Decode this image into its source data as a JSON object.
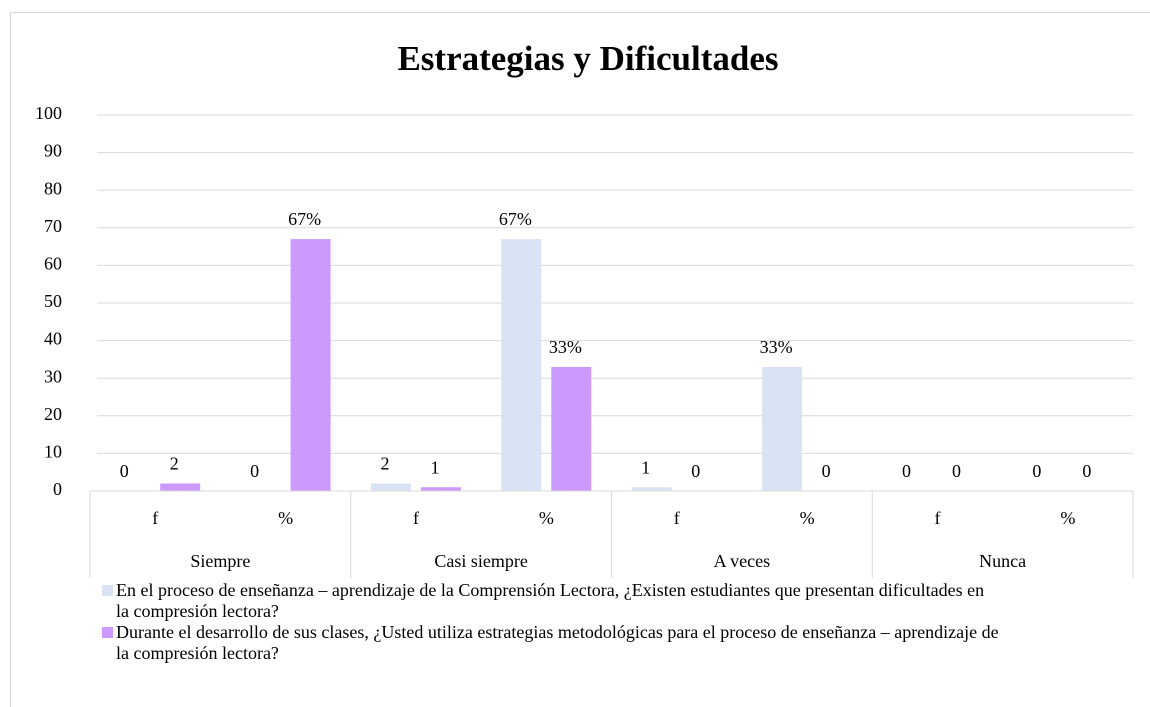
{
  "chart_data": {
    "type": "bar",
    "title": "Estrategias y Dificultades",
    "categories": [
      "f",
      "%",
      "f",
      "%",
      "f",
      "%",
      "f",
      "%"
    ],
    "groups": [
      "Siempre",
      "Casi siempre",
      "A veces",
      "Nunca"
    ],
    "series": [
      {
        "name": "En el proceso de enseñanza – aprendizaje de la Comprensión Lectora, ¿Existen estudiantes que presentan dificultades en la compresión lectora?",
        "color": "#dae3f3",
        "values": [
          0,
          0,
          2,
          67,
          1,
          33,
          0,
          0
        ],
        "value_labels": [
          "0",
          "0",
          "2",
          "67%",
          "1",
          "33%",
          "0",
          "0"
        ]
      },
      {
        "name": "Durante el desarrollo de sus clases, ¿Usted utiliza estrategias metodológicas para el proceso de enseñanza – aprendizaje de la compresión lectora?",
        "color": "#cc99ff",
        "values": [
          2,
          67,
          1,
          33,
          0,
          0,
          0,
          0
        ],
        "value_labels": [
          "2",
          "67%",
          "1",
          "33%",
          "0",
          "0",
          "0",
          "0"
        ]
      }
    ],
    "ylim": [
      0,
      100
    ],
    "yticks": [
      0,
      10,
      20,
      30,
      40,
      50,
      60,
      70,
      80,
      90,
      100
    ],
    "grid": true,
    "legend": "bottom"
  }
}
